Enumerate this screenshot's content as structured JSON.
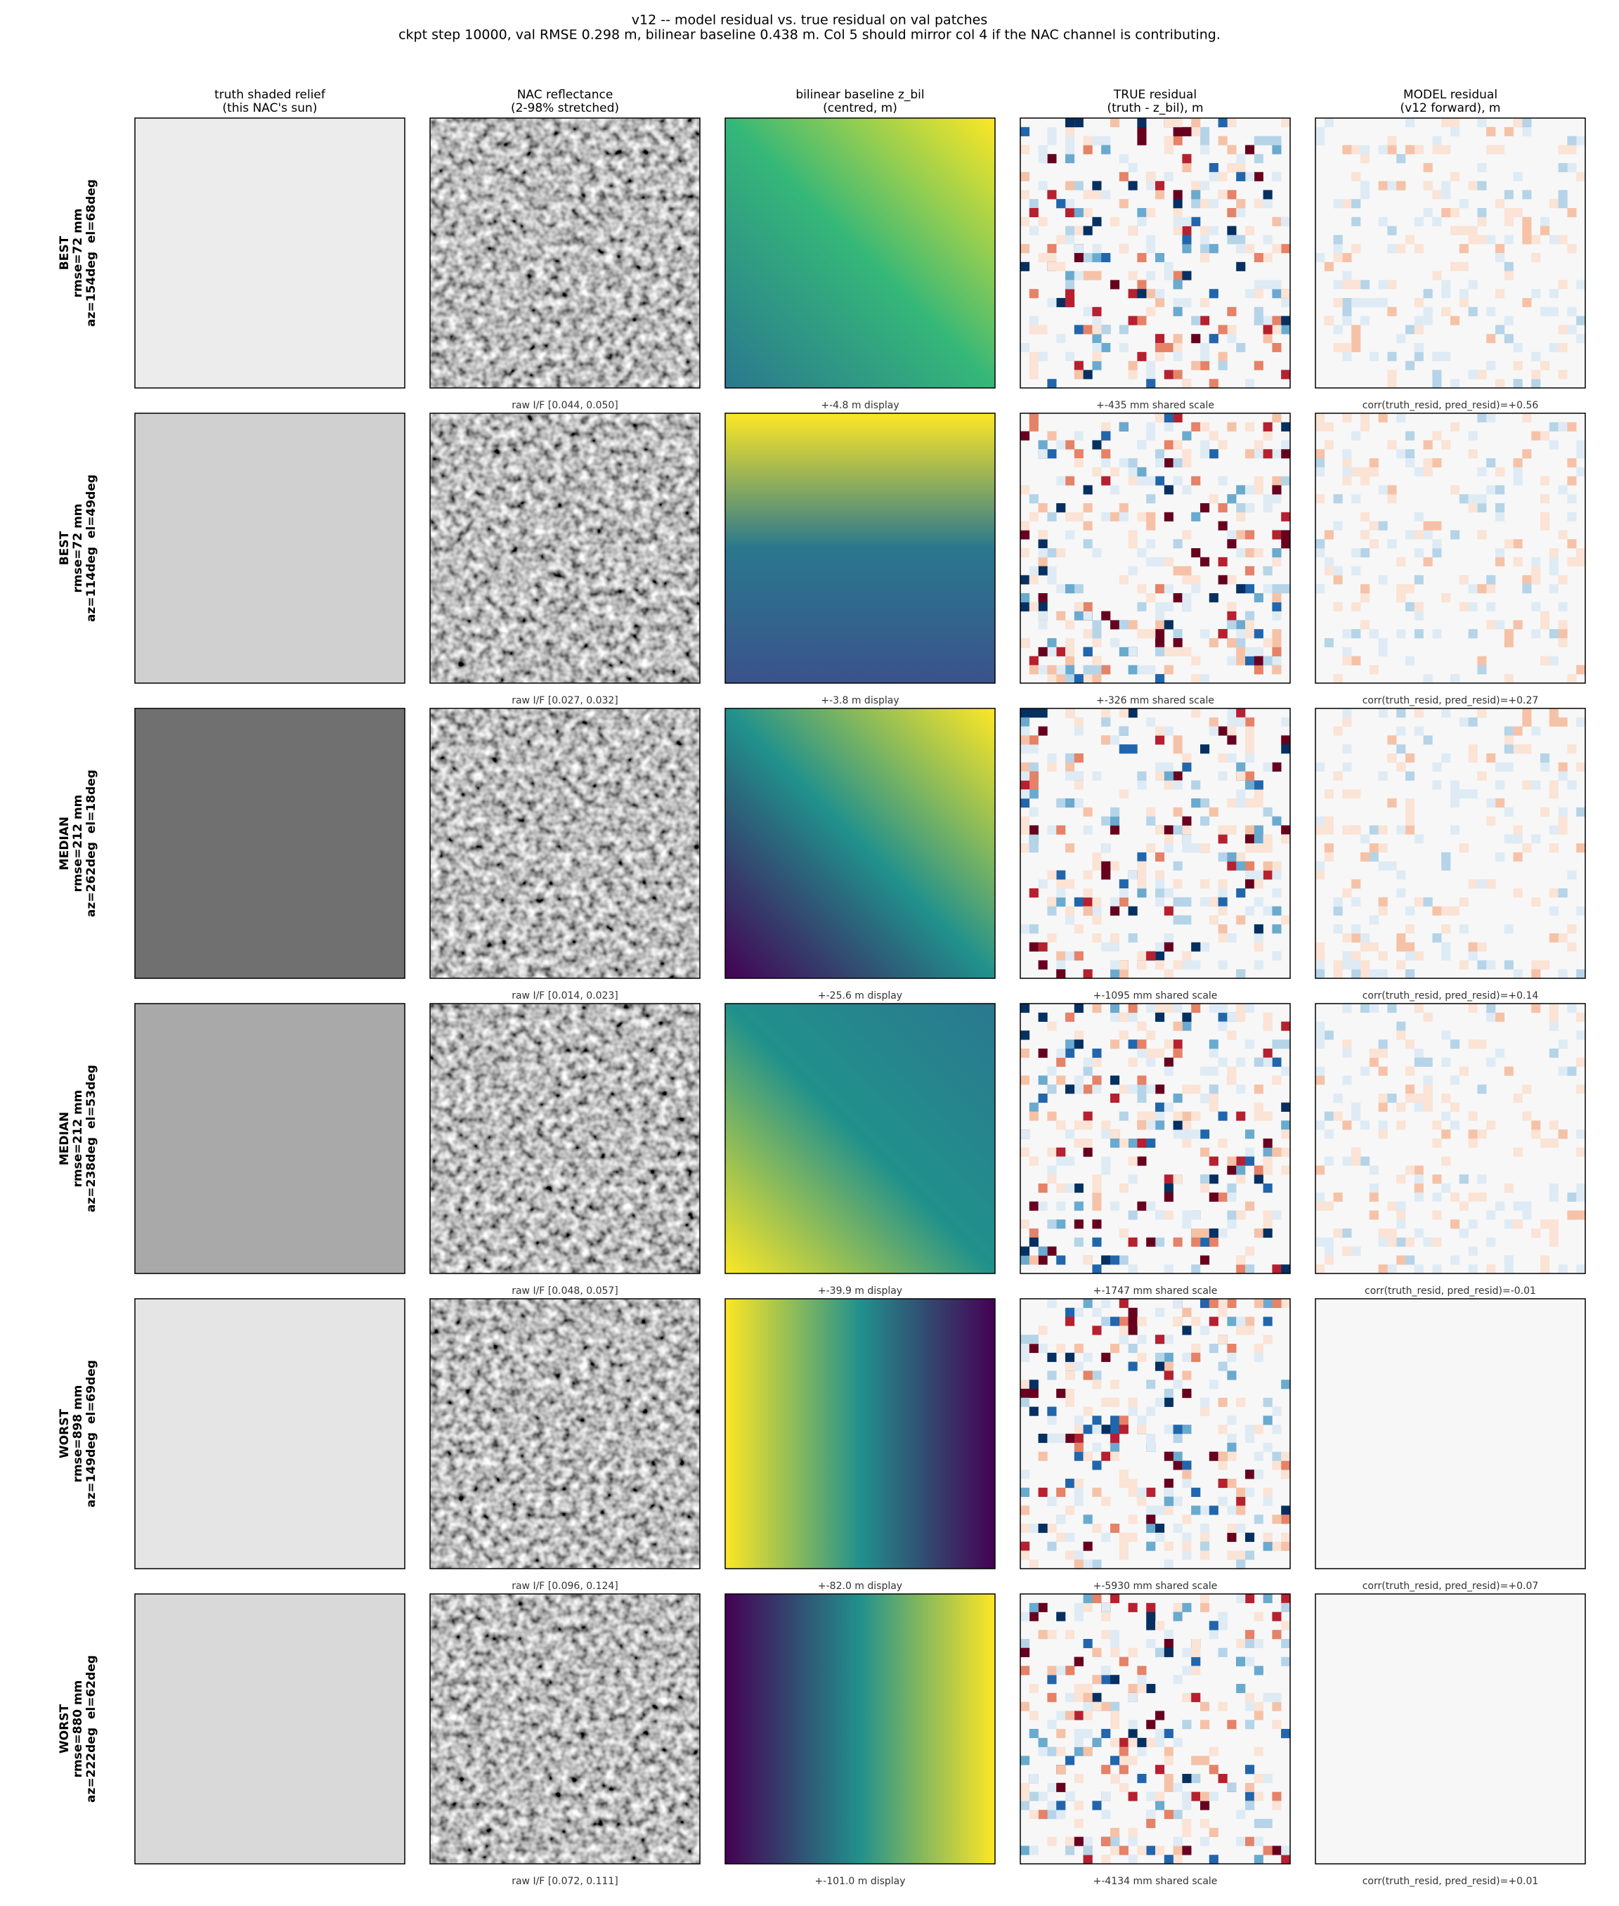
{
  "title": [
    "v12 -- model residual vs. true residual on val patches",
    "ckpt step 10000, val RMSE 0.298 m, bilinear baseline 0.438 m. Col 5 should mirror col 4 if the NAC channel is contributing."
  ],
  "columns": [
    [
      "truth shaded relief",
      "(this NAC's sun)"
    ],
    [
      "NAC reflectance",
      "(2-98% stretched)"
    ],
    [
      "bilinear baseline z_bil",
      "(centred, m)"
    ],
    [
      "TRUE residual",
      "(truth - z_bil), m"
    ],
    [
      "MODEL residual",
      "(v12 forward), m"
    ]
  ],
  "rows": [
    {
      "label": [
        "BEST",
        "rmse=72 mm",
        "az=154deg  el=68deg"
      ],
      "captions": [
        "raw I/F [0.044, 0.050]",
        "+-4.8 m display",
        "+-435 mm shared scale",
        "corr(truth_resid, pred_resid)=+0.56"
      ]
    },
    {
      "label": [
        "BEST",
        "rmse=72 mm",
        "az=114deg  el=49deg"
      ],
      "captions": [
        "raw I/F [0.027, 0.032]",
        "+-3.8 m display",
        "+-326 mm shared scale",
        "corr(truth_resid, pred_resid)=+0.27"
      ]
    },
    {
      "label": [
        "MEDIAN",
        "rmse=212 mm",
        "az=262deg  el=18deg"
      ],
      "captions": [
        "raw I/F [0.014, 0.023]",
        "+-25.6 m display",
        "+-1095 mm shared scale",
        "corr(truth_resid, pred_resid)=+0.14"
      ]
    },
    {
      "label": [
        "MEDIAN",
        "rmse=212 mm",
        "az=238deg  el=53deg"
      ],
      "captions": [
        "raw I/F [0.048, 0.057]",
        "+-39.9 m display",
        "+-1747 mm shared scale",
        "corr(truth_resid, pred_resid)=-0.01"
      ]
    },
    {
      "label": [
        "WORST",
        "rmse=898 mm",
        "az=149deg  el=69deg"
      ],
      "captions": [
        "raw I/F [0.096, 0.124]",
        "+-82.0 m display",
        "+-5930 mm shared scale",
        "corr(truth_resid, pred_resid)=+0.07"
      ]
    },
    {
      "label": [
        "WORST",
        "rmse=880 mm",
        "az=222deg  el=62deg"
      ],
      "captions": [
        "raw I/F [0.072, 0.111]",
        "+-101.0 m display",
        "+-4134 mm shared scale",
        "corr(truth_resid, pred_resid)=+0.01"
      ]
    }
  ]
}
